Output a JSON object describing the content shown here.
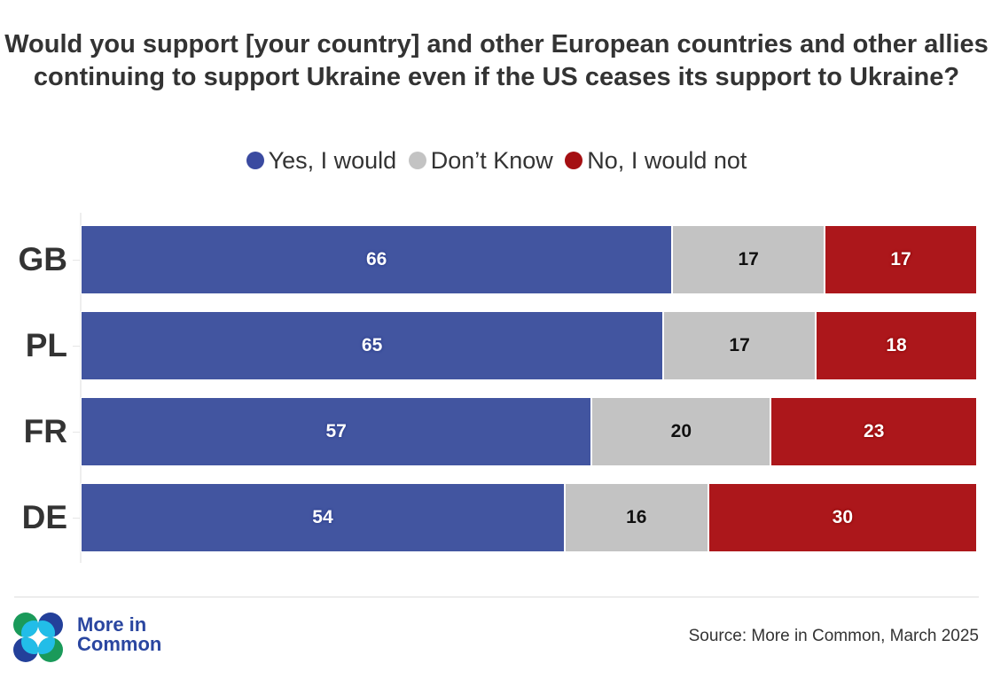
{
  "title": "Would you support [your country] and other European countries and other allies continuing to support Ukraine even if the US ceases its support to Ukraine?",
  "legend": [
    {
      "label": "Yes, I would",
      "color": "#4255a0"
    },
    {
      "label": "Don’t Know",
      "color": "#c3c3c3"
    },
    {
      "label": "No, I would not",
      "color": "#ac171b"
    }
  ],
  "chart_data": {
    "type": "bar",
    "orientation": "horizontal",
    "stacked": true,
    "title": "Would you support [your country] and other European countries and other allies continuing to support Ukraine even if the US ceases its support to Ukraine?",
    "categories": [
      "GB",
      "PL",
      "FR",
      "DE"
    ],
    "series": [
      {
        "name": "Yes, I would",
        "color": "#4255a0",
        "values": [
          66,
          65,
          57,
          54
        ]
      },
      {
        "name": "Don’t Know",
        "color": "#c3c3c3",
        "values": [
          17,
          17,
          20,
          16
        ]
      },
      {
        "name": "No, I would not",
        "color": "#ac171b",
        "values": [
          17,
          18,
          23,
          30
        ]
      }
    ],
    "xlim": [
      0,
      100
    ],
    "xlabel": "",
    "ylabel": "",
    "legend_position": "top-center",
    "grid": false
  },
  "footer": {
    "logo_line1": "More in",
    "logo_line2": "Common",
    "source": "Source: More in Common, March 2025"
  }
}
